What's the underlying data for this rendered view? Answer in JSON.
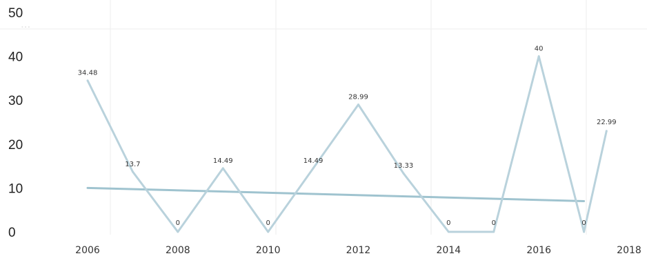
{
  "chart_data": {
    "type": "line",
    "title": "",
    "xlabel": "",
    "ylabel": "",
    "ylim": [
      0,
      50
    ],
    "xlim": [
      2006,
      2018
    ],
    "yticks": [
      0,
      10,
      20,
      30,
      40,
      50
    ],
    "xticks": [
      2006,
      2008,
      2010,
      2012,
      2014,
      2016,
      2018
    ],
    "grid": false,
    "legend": "none",
    "series": [
      {
        "x": [
          2006,
          2007,
          2008,
          2009,
          2010,
          2011,
          2012,
          2013,
          2014,
          2015,
          2016,
          2017
        ],
        "values": [
          34.48,
          13.7,
          0,
          14.49,
          0,
          14.49,
          28.99,
          13.33,
          0,
          0,
          40,
          0
        ],
        "labels": [
          "34.48",
          "13.7",
          "0",
          "14.49",
          "0",
          "14.49",
          "28.99",
          "13.33",
          "0",
          "0",
          "40",
          "0"
        ],
        "color": "#b9d2dc"
      },
      {
        "x": [
          2006,
          2017
        ],
        "values": [
          10,
          7
        ],
        "color": "#9fc3cf"
      }
    ],
    "extra_point": {
      "x": 2017.5,
      "value": 22.99,
      "label": "22.99"
    }
  }
}
